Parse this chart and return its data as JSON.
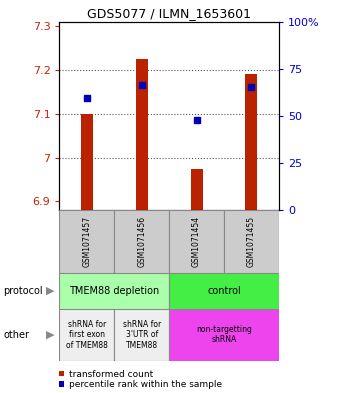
{
  "title": "GDS5077 / ILMN_1653601",
  "samples": [
    "GSM1071457",
    "GSM1071456",
    "GSM1071454",
    "GSM1071455"
  ],
  "red_values": [
    7.1,
    7.225,
    6.975,
    7.19
  ],
  "blue_values": [
    7.135,
    7.165,
    7.085,
    7.16
  ],
  "ylim_left": [
    6.88,
    7.31
  ],
  "ylim_right": [
    0,
    100
  ],
  "right_ticks": [
    0,
    25,
    50,
    75,
    100
  ],
  "right_tick_labels": [
    "0",
    "25",
    "50",
    "75",
    "100%"
  ],
  "left_ticks": [
    6.9,
    7.0,
    7.1,
    7.2,
    7.3
  ],
  "left_tick_labels": [
    "6.9",
    "7",
    "7.1",
    "7.2",
    "7.3"
  ],
  "dotted_lines": [
    7.0,
    7.1,
    7.2
  ],
  "bar_color": "#bb2200",
  "dot_color": "#0000bb",
  "bar_bottom": 6.88,
  "bar_width": 0.22,
  "protocol_row": {
    "groups": [
      {
        "label": "TMEM88 depletion",
        "cols": [
          0,
          1
        ],
        "color": "#aaffaa"
      },
      {
        "label": "control",
        "cols": [
          2,
          3
        ],
        "color": "#44ee44"
      }
    ]
  },
  "other_row": {
    "groups": [
      {
        "label": "shRNA for\nfirst exon\nof TMEM88",
        "cols": [
          0
        ],
        "color": "#eeeeee"
      },
      {
        "label": "shRNA for\n3'UTR of\nTMEM88",
        "cols": [
          1
        ],
        "color": "#eeeeee"
      },
      {
        "label": "non-targetting\nshRNA",
        "cols": [
          2,
          3
        ],
        "color": "#ee44ee"
      }
    ]
  },
  "legend_red": "transformed count",
  "legend_blue": "percentile rank within the sample",
  "left_axis_color": "#cc2200",
  "right_axis_color": "#0000cc",
  "bg_color": "#ffffff",
  "grid_color": "#555555",
  "sample_bg": "#cccccc",
  "cell_border": "#888888"
}
